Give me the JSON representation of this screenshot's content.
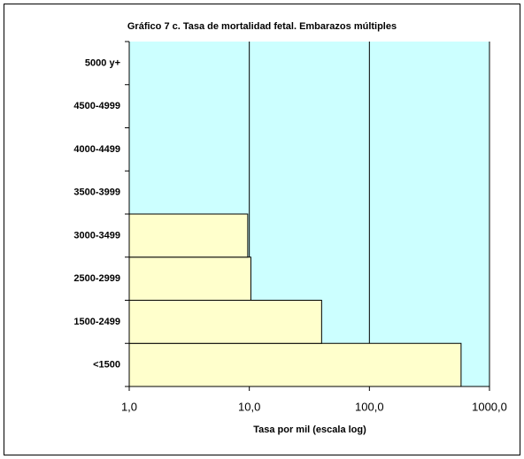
{
  "chart_data": {
    "type": "bar",
    "orientation": "horizontal",
    "title": "Gráfico 7 c. Tasa de mortalidad fetal. Embarazos múltiples",
    "x_label": "Tasa por mil (escala log)",
    "categories": [
      "<1500",
      "1500-2499",
      "2500-2999",
      "3000-3499",
      "3500-3999",
      "4000-4499",
      "4500-4999",
      "5000 y+"
    ],
    "values": [
      580,
      40,
      10.3,
      9.7,
      null,
      null,
      null,
      null
    ],
    "color": "#ffffcc",
    "plot_background": "#ccffff",
    "xscale": "log",
    "xlim": [
      1,
      1000
    ],
    "xticks": [
      {
        "value": 1,
        "label": "1,0"
      },
      {
        "value": 10,
        "label": "10,0"
      },
      {
        "value": 100,
        "label": "100,0"
      },
      {
        "value": 1000,
        "label": "1000,0"
      }
    ],
    "grid": true
  }
}
